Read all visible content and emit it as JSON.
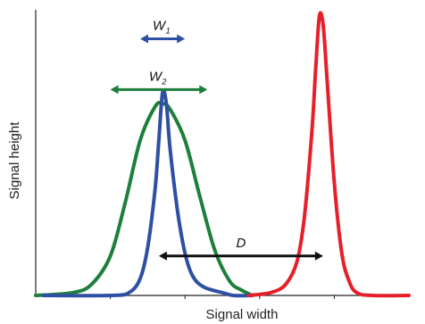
{
  "chart_data": {
    "type": "line",
    "xlabel": "Signal width",
    "ylabel": "Signal height",
    "xlim": [
      0,
      100
    ],
    "ylim": [
      0,
      100
    ],
    "grid": false,
    "series": [
      {
        "color": "#2e4fa3",
        "x": [
          2,
          20,
          25,
          28,
          30,
          32,
          33,
          34,
          35,
          36,
          38,
          40,
          42,
          45,
          50,
          53,
          58
        ],
        "y": [
          0,
          0,
          1,
          6,
          17,
          38,
          55,
          72,
          68,
          52,
          30,
          15,
          7,
          3,
          1,
          0,
          0
        ]
      },
      {
        "color": "#1d7f3a",
        "x": [
          0,
          10,
          15,
          20,
          24,
          28,
          32,
          34,
          36,
          40,
          44,
          48,
          52,
          55,
          58
        ],
        "y": [
          0,
          1,
          4,
          14,
          33,
          55,
          67,
          68,
          66,
          55,
          35,
          16,
          5,
          2,
          0
        ]
      },
      {
        "color": "#e5202a",
        "x": [
          57,
          63,
          67,
          70,
          72,
          74,
          75,
          76,
          77,
          78,
          80,
          82,
          84,
          86,
          90,
          100
        ],
        "y": [
          0,
          1,
          4,
          12,
          28,
          58,
          80,
          99,
          96,
          78,
          40,
          15,
          5,
          1,
          0,
          0
        ]
      }
    ],
    "annotations": [
      {
        "label": "W",
        "subscript": "1",
        "color": "#2e4fa3",
        "x_start": 28,
        "x_end": 40,
        "y": 91
      },
      {
        "label": "W",
        "subscript": "2",
        "color": "#1d7f3a",
        "x_start": 20,
        "x_end": 46,
        "y": 73
      },
      {
        "label": "D",
        "subscript": "",
        "color": "#111111",
        "x_start": 33,
        "x_end": 77,
        "y": 14
      }
    ],
    "x_ticks": [
      20,
      40,
      60,
      80
    ]
  }
}
